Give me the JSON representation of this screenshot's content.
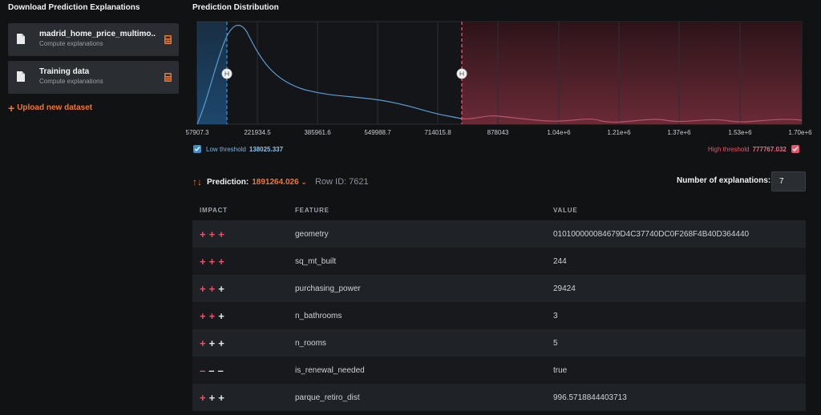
{
  "left_panel": {
    "title": "Download Prediction Explanations",
    "datasets": [
      {
        "name": "madrid_home_price_multimo...",
        "sub": "Compute explanations"
      },
      {
        "name": "Training data",
        "sub": "Compute explanations"
      }
    ],
    "upload_label": "Upload new dataset"
  },
  "distribution": {
    "title": "Prediction Distribution",
    "x_ticks": [
      "57907.3",
      "221934.5",
      "385961.6",
      "549988.7",
      "714015.8",
      "878043",
      "1.04e+6",
      "1.21e+6",
      "1.37e+6",
      "1.53e+6",
      "1.70e+6"
    ],
    "low_threshold_label": "Low threshold",
    "low_threshold_value": "138025.337",
    "high_threshold_label": "High threshold",
    "high_threshold_value": "777767.032",
    "low_color": "#3a8fd0",
    "high_color": "#e9546b"
  },
  "prediction": {
    "label": "Prediction:",
    "value": "1891264.026",
    "row_id": "Row ID: 7621",
    "num_explanations_label": "Number of explanations:",
    "num_explanations_value": "7"
  },
  "table": {
    "headers": [
      "IMPACT",
      "FEATURE",
      "VALUE"
    ],
    "rows": [
      {
        "impact": [
          "+",
          "+",
          "+"
        ],
        "strength": 3,
        "sign": "pos",
        "feature": "geometry",
        "value": "010100000084679D4C37740DC0F268F4B40D364440"
      },
      {
        "impact": [
          "+",
          "+",
          "+"
        ],
        "strength": 3,
        "sign": "pos",
        "feature": "sq_mt_built",
        "value": "244"
      },
      {
        "impact": [
          "+",
          "+",
          "+"
        ],
        "strength": 2,
        "sign": "pos",
        "feature": "purchasing_power",
        "value": "29424"
      },
      {
        "impact": [
          "+",
          "+",
          "+"
        ],
        "strength": 2,
        "sign": "pos",
        "feature": "n_bathrooms",
        "value": "3"
      },
      {
        "impact": [
          "+",
          "+",
          "+"
        ],
        "strength": 1,
        "sign": "pos",
        "feature": "n_rooms",
        "value": "5"
      },
      {
        "impact": [
          "–",
          "–",
          "–"
        ],
        "strength": 1,
        "sign": "neg",
        "feature": "is_renewal_needed",
        "value": "true"
      },
      {
        "impact": [
          "+",
          "+",
          "+"
        ],
        "strength": 1,
        "sign": "pos",
        "feature": "parque_retiro_dist",
        "value": "996.5718844403713"
      }
    ]
  }
}
